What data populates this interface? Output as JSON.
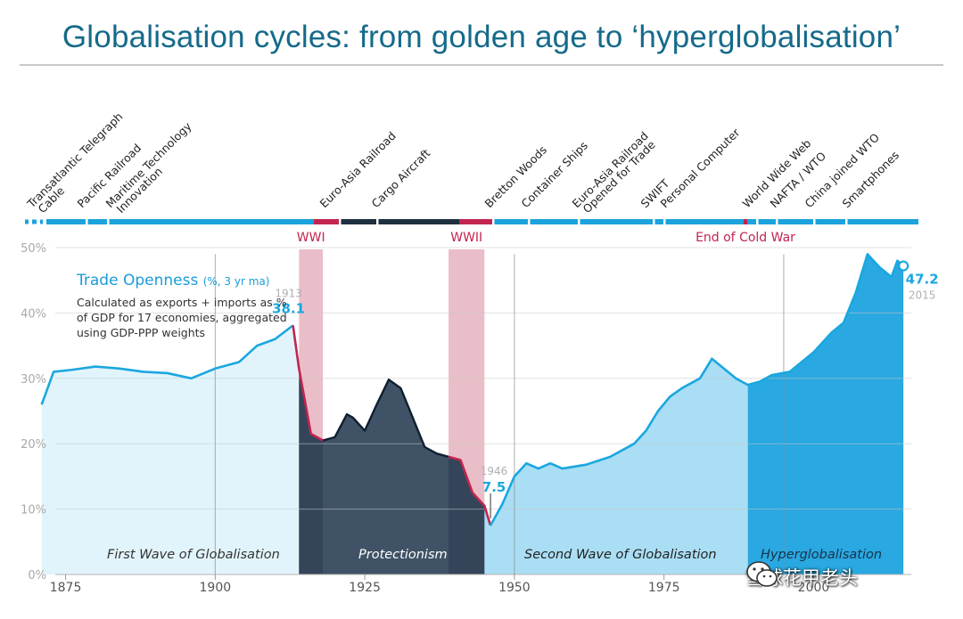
{
  "title": "Globalisation cycles: from golden age to ‘hyperglobalisation’",
  "watermark": {
    "icon": "wechat-icon",
    "text": "雪球花甲老头"
  },
  "colors": {
    "line": "#1aa7df",
    "wave": "#e2f4fb",
    "protectionism": "#35495e",
    "second_wave": "#a5dcf3",
    "hyper": "#1ea3df",
    "war_band": "#e8b7c2",
    "decline": "#c2254f",
    "timeline": "#1aa3dc",
    "timeline_dark": "#1e2f3f",
    "grid": "#c7c7c7"
  },
  "chart_data": {
    "type": "area",
    "title": "Trade Openness",
    "title_unit": "(%, 3 yr ma)",
    "description": [
      "Calculated as exports + imports as %",
      "of GDP for 17 economies, aggregated",
      "using GDP-PPP weights"
    ],
    "ylim": [
      0,
      50
    ],
    "xlim": [
      1870,
      2019
    ],
    "yticks": [
      0,
      10,
      20,
      30,
      40,
      50
    ],
    "ytick_labels": [
      "0%",
      "10%",
      "20%",
      "30%",
      "40%",
      "50%"
    ],
    "xticks": [
      1875,
      1900,
      1925,
      1950,
      1975,
      2000
    ],
    "vlines": [
      1900,
      1950,
      1995
    ],
    "series": [
      {
        "name": "Trade Openness",
        "x": [
          1871,
          1873,
          1876,
          1880,
          1884,
          1888,
          1892,
          1896,
          1900,
          1904,
          1907,
          1910,
          1913,
          1914,
          1916,
          1918,
          1920,
          1922,
          1923,
          1925,
          1927,
          1929,
          1931,
          1933,
          1935,
          1937,
          1939,
          1941,
          1943,
          1945,
          1946,
          1948,
          1950,
          1952,
          1954,
          1956,
          1958,
          1962,
          1966,
          1970,
          1972,
          1974,
          1976,
          1978,
          1981,
          1983,
          1985,
          1987,
          1989,
          1991,
          1993,
          1996,
          1998,
          2000,
          2003,
          2005,
          2007,
          2009,
          2011,
          2013,
          2014,
          2015
        ],
        "values": [
          26,
          31,
          31.3,
          31.8,
          31.5,
          31,
          30.8,
          30,
          31.5,
          32.5,
          35,
          36,
          38.1,
          31.5,
          21.5,
          20.5,
          21,
          24.5,
          24,
          22,
          26,
          29.8,
          28.5,
          24,
          19.5,
          18.5,
          18,
          17.5,
          12.5,
          10.5,
          7.5,
          10.8,
          15,
          17,
          16.2,
          17,
          16.2,
          16.8,
          18,
          20,
          22,
          25,
          27.2,
          28.5,
          30,
          33,
          31.5,
          30,
          29,
          29.5,
          30.5,
          31,
          32.5,
          34,
          37,
          38.5,
          43,
          49,
          47,
          45.5,
          48,
          47.2
        ]
      }
    ],
    "annotations": [
      {
        "label": "38.1",
        "year": "1913",
        "x": 1913,
        "y": 38.1
      },
      {
        "label": "7.5",
        "year": "1946",
        "x": 1946,
        "y": 7.5
      },
      {
        "label": "47.2",
        "year": "2015",
        "x": 2015,
        "y": 47.2
      }
    ],
    "regions": [
      {
        "label": "First Wave of Globalisation",
        "from": 1871,
        "to": 1914
      },
      {
        "label": "Protectionism",
        "from": 1914,
        "to": 1945
      },
      {
        "label": "Second Wave of Globalisation",
        "from": 1945,
        "to": 1989
      },
      {
        "label": "Hyperglobalisation",
        "from": 1989,
        "to": 2015
      }
    ],
    "war_bands": [
      {
        "label": "WWI",
        "from": 1914,
        "to": 1918
      },
      {
        "label": "WWII",
        "from": 1939,
        "to": 1945
      },
      {
        "label": "End of Cold War",
        "from": 1989,
        "to": 1989
      }
    ],
    "events": [
      {
        "lines": [
          "Transatlantic Telegraph",
          "Cable"
        ],
        "year": 1866
      },
      {
        "lines": [
          "Pacific Railroad"
        ],
        "year": 1869
      },
      {
        "lines": [
          "Maritime Technology",
          "Innovation"
        ],
        "year": 1875
      },
      {
        "lines": [
          "Euro-Asia Railroad"
        ],
        "year": 1916
      },
      {
        "lines": [
          "Cargo Aircraft"
        ],
        "year": 1925
      },
      {
        "lines": [
          "Bretton Woods"
        ],
        "year": 1944
      },
      {
        "lines": [
          "Container Ships"
        ],
        "year": 1956
      },
      {
        "lines": [
          "Euro-Asia Railroad",
          "Opened for Trade"
        ],
        "year": 1966
      },
      {
        "lines": [
          "SWIFT"
        ],
        "year": 1973
      },
      {
        "lines": [
          "Personal Computer"
        ],
        "year": 1977
      },
      {
        "lines": [
          "World Wide Web"
        ],
        "year": 1991
      },
      {
        "lines": [
          "NAFTA / WTO"
        ],
        "year": 1995
      },
      {
        "lines": [
          "China joined WTO"
        ],
        "year": 2001
      },
      {
        "lines": [
          "Smartphones"
        ],
        "year": 2007
      }
    ]
  }
}
